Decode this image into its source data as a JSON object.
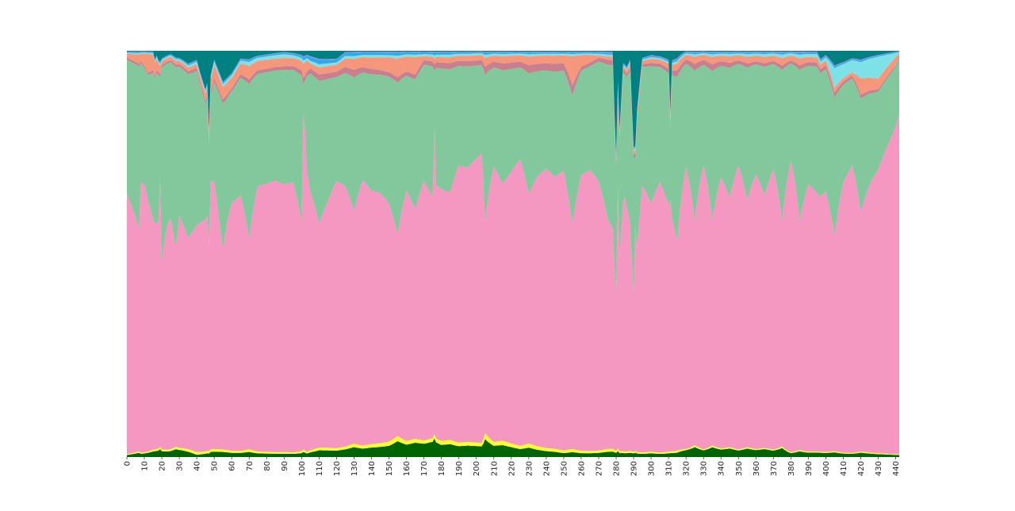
{
  "chart_data": {
    "type": "area",
    "stacked": true,
    "normalized": true,
    "title": "",
    "xlabel": "",
    "ylabel": "",
    "xlim": [
      0,
      442
    ],
    "ylim": [
      0,
      1
    ],
    "grid": false,
    "legend": "none",
    "x_ticks": [
      0,
      10,
      20,
      30,
      40,
      50,
      60,
      70,
      80,
      90,
      100,
      110,
      120,
      130,
      140,
      150,
      160,
      170,
      180,
      190,
      200,
      210,
      220,
      230,
      240,
      250,
      260,
      270,
      280,
      290,
      300,
      310,
      320,
      330,
      340,
      350,
      360,
      370,
      380,
      390,
      400,
      410,
      420,
      430,
      440
    ],
    "x_tick_labels": [
      "0",
      "10",
      "20",
      "30",
      "40",
      "50",
      "60",
      "70",
      "80",
      "90",
      "100",
      "110",
      "120",
      "130",
      "140",
      "150",
      "160",
      "170",
      "180",
      "190",
      "200",
      "210",
      "220",
      "230",
      "240",
      "250",
      "260",
      "270",
      "280",
      "290",
      "300",
      "310",
      "320",
      "330",
      "340",
      "350",
      "360",
      "370",
      "380",
      "390",
      "400",
      "410",
      "420",
      "430",
      "440"
    ],
    "series_colors": [
      "#006400",
      "#ffff33",
      "#f497c1",
      "#83c89c",
      "#c97f8e",
      "#f5977a",
      "#7fe1e8",
      "#2fa8ec",
      "#8c8cd4",
      "#008080"
    ],
    "series": [
      {
        "color": "#006400",
        "x": [
          0,
          20,
          30,
          40,
          50,
          70,
          100,
          130,
          150,
          155,
          175,
          180,
          205,
          250,
          280,
          315,
          320,
          340,
          375,
          380,
          420,
          442
        ],
        "values": [
          0.005,
          0.015,
          0.02,
          0.005,
          0.012,
          0.01,
          0.008,
          0.02,
          0.025,
          0.03,
          0.035,
          0.025,
          0.03,
          0.01,
          0.01,
          0.008,
          0.02,
          0.02,
          0.018,
          0.012,
          0.008,
          0.005
        ]
      },
      {
        "color": "#ffff33",
        "x": [
          0,
          30,
          50,
          100,
          155,
          175,
          205,
          280,
          290,
          442
        ],
        "values": [
          0.002,
          0.006,
          0.006,
          0.004,
          0.01,
          0.008,
          0.01,
          0.005,
          0.004,
          0.002
        ]
      },
      {
        "color": "#f497c1",
        "x": [
          0,
          7,
          8,
          10,
          15,
          17,
          20,
          23,
          25,
          28,
          30,
          35,
          40,
          45,
          48,
          50,
          55,
          60,
          65,
          70,
          75,
          80,
          85,
          90,
          95,
          100,
          103,
          105,
          110,
          115,
          120,
          125,
          130,
          135,
          140,
          145,
          150,
          155,
          160,
          165,
          170,
          175,
          180,
          185,
          190,
          195,
          200,
          203,
          205,
          210,
          215,
          220,
          225,
          230,
          235,
          240,
          245,
          250,
          255,
          260,
          265,
          270,
          275,
          280,
          285,
          290,
          295,
          300,
          305,
          310,
          315,
          320,
          325,
          330,
          335,
          340,
          345,
          350,
          355,
          360,
          365,
          370,
          375,
          380,
          385,
          390,
          395,
          400,
          405,
          410,
          415,
          420,
          425,
          430,
          435,
          440,
          442
        ],
        "values": [
          0.64,
          0.45,
          0.75,
          0.76,
          0.52,
          0.5,
          0.49,
          0.66,
          0.68,
          0.48,
          0.65,
          0.49,
          0.5,
          0.6,
          0.56,
          0.6,
          0.45,
          0.66,
          0.65,
          0.41,
          0.71,
          0.72,
          0.74,
          0.7,
          0.72,
          0.47,
          0.73,
          0.55,
          0.4,
          0.52,
          0.67,
          0.61,
          0.47,
          0.67,
          0.6,
          0.59,
          0.53,
          0.38,
          0.63,
          0.52,
          0.66,
          0.55,
          0.52,
          0.5,
          0.69,
          0.67,
          0.75,
          0.81,
          0.35,
          0.68,
          0.55,
          0.64,
          0.76,
          0.5,
          0.62,
          0.68,
          0.64,
          0.71,
          0.46,
          0.71,
          0.75,
          0.64,
          0.44,
          0.38,
          0.66,
          0.41,
          0.77,
          0.59,
          0.74,
          0.56,
          0.38,
          0.82,
          0.45,
          0.85,
          0.46,
          0.73,
          0.58,
          0.84,
          0.56,
          0.75,
          0.59,
          0.8,
          0.45,
          0.9,
          0.46,
          0.68,
          0.61,
          0.64,
          0.44,
          0.71,
          0.77,
          0.44,
          0.57,
          0.65,
          0.73,
          0.8,
          0.83
        ]
      },
      {
        "color": "#83c89c",
        "x": [
          0,
          18,
          19,
          20,
          45,
          47,
          48,
          55,
          57,
          60,
          100,
          101,
          102,
          103,
          175,
          176,
          177,
          240,
          280,
          281,
          282,
          290,
          291,
          292,
          310,
          311,
          312,
          400,
          405,
          420,
          442
        ],
        "values": [
          0.33,
          0.33,
          0.18,
          0.5,
          0.3,
          0.28,
          0.18,
          0.33,
          0.3,
          0.3,
          0.3,
          0.05,
          0.1,
          0.25,
          0.3,
          0.1,
          0.25,
          0.24,
          0.3,
          0.15,
          0.3,
          0.35,
          0.15,
          0.35,
          0.3,
          0.15,
          0.3,
          0.3,
          0.28,
          0.21,
          0.14
        ]
      },
      {
        "color": "#c97f8e",
        "x": [
          0,
          50,
          100,
          130,
          150,
          180,
          220,
          255,
          260,
          300,
          330,
          360,
          400,
          442
        ],
        "values": [
          0.005,
          0.008,
          0.01,
          0.015,
          0.01,
          0.012,
          0.015,
          0.02,
          0.01,
          0.008,
          0.015,
          0.008,
          0.01,
          0.004
        ]
      },
      {
        "color": "#f5977a",
        "x": [
          0,
          8,
          12,
          20,
          40,
          50,
          100,
          103,
          105,
          165,
          170,
          250,
          255,
          260,
          265,
          270,
          330,
          380,
          415,
          420,
          440,
          442
        ],
        "values": [
          0.01,
          0.02,
          0.05,
          0.01,
          0.008,
          0.03,
          0.02,
          0.03,
          0.01,
          0.04,
          0.01,
          0.02,
          0.06,
          0.03,
          0.02,
          0.005,
          0.015,
          0.015,
          0.008,
          0.03,
          0.02,
          0.005
        ]
      },
      {
        "color": "#7fe1e8",
        "x": [
          0,
          90,
          100,
          200,
          300,
          400,
          405,
          420,
          430,
          442
        ],
        "values": [
          0.002,
          0.01,
          0.006,
          0.005,
          0.004,
          0.008,
          0.04,
          0.03,
          0.05,
          0.002
        ]
      },
      {
        "color": "#2fa8ec",
        "x": [
          0,
          100,
          105,
          200,
          300,
          400,
          442
        ],
        "values": [
          0.002,
          0.004,
          0.008,
          0.003,
          0.003,
          0.003,
          0.002
        ]
      },
      {
        "color": "#8c8cd4",
        "x": [
          0,
          100,
          200,
          300,
          400,
          442
        ],
        "values": [
          0.001,
          0.002,
          0.002,
          0.002,
          0.003,
          0.001
        ]
      },
      {
        "color": "#008080",
        "x": [
          0,
          15,
          16,
          17,
          18,
          20,
          25,
          30,
          35,
          40,
          45,
          46,
          47,
          48,
          50,
          55,
          60,
          65,
          90,
          120,
          125,
          130,
          278,
          280,
          281,
          282,
          284,
          286,
          288,
          290,
          295,
          300,
          310,
          311,
          312,
          320,
          395,
          397,
          400,
          405,
          410,
          415,
          442
        ],
        "values": [
          0.002,
          0.002,
          0.02,
          0.01,
          0.02,
          0.02,
          0.01,
          0.02,
          0.03,
          0.02,
          0.1,
          0.08,
          0.22,
          0.05,
          0.02,
          0.07,
          0.06,
          0.02,
          0.003,
          0.02,
          0.003,
          0.002,
          0.002,
          0.25,
          0.05,
          0.2,
          0.03,
          0.04,
          0.02,
          0.25,
          0.02,
          0.01,
          0.02,
          0.13,
          0.02,
          0.002,
          0.002,
          0.02,
          0.01,
          0.03,
          0.03,
          0.02,
          0.001
        ]
      }
    ]
  }
}
